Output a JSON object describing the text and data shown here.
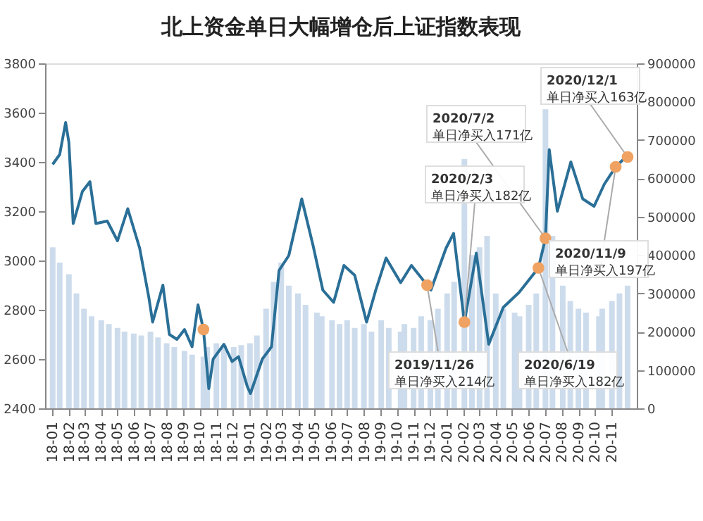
{
  "chart_data": {
    "type": "line",
    "title": "北上资金单日大幅增仓后上证指数表现",
    "xlim": [
      "2018-01-01",
      "2020-12-05"
    ],
    "xticks": [
      {
        "value": "2018-01-01",
        "label": "18-01"
      },
      {
        "value": "2018-02-01",
        "label": "18-02"
      },
      {
        "value": "2018-03-01",
        "label": "18-03"
      },
      {
        "value": "2018-04-01",
        "label": "18-04"
      },
      {
        "value": "2018-05-01",
        "label": "18-05"
      },
      {
        "value": "2018-06-01",
        "label": "18-06"
      },
      {
        "value": "2018-07-01",
        "label": "18-07"
      },
      {
        "value": "2018-08-01",
        "label": "18-08"
      },
      {
        "value": "2018-09-01",
        "label": "18-09"
      },
      {
        "value": "2018-10-01",
        "label": "18-10"
      },
      {
        "value": "2018-11-01",
        "label": "18-11"
      },
      {
        "value": "2018-12-01",
        "label": "18-12"
      },
      {
        "value": "2019-01-01",
        "label": "19-01"
      },
      {
        "value": "2019-02-01",
        "label": "19-02"
      },
      {
        "value": "2019-03-01",
        "label": "19-03"
      },
      {
        "value": "2019-04-01",
        "label": "19-04"
      },
      {
        "value": "2019-05-01",
        "label": "19-05"
      },
      {
        "value": "2019-06-01",
        "label": "19-06"
      },
      {
        "value": "2019-07-01",
        "label": "19-07"
      },
      {
        "value": "2019-08-01",
        "label": "19-08"
      },
      {
        "value": "2019-09-01",
        "label": "19-09"
      },
      {
        "value": "2019-10-01",
        "label": "19-10"
      },
      {
        "value": "2019-11-01",
        "label": "19-11"
      },
      {
        "value": "2019-12-01",
        "label": "19-12"
      },
      {
        "value": "2020-01-01",
        "label": "20-01"
      },
      {
        "value": "2020-02-01",
        "label": "20-02"
      },
      {
        "value": "2020-03-01",
        "label": "20-03"
      },
      {
        "value": "2020-04-01",
        "label": "20-04"
      },
      {
        "value": "2020-05-01",
        "label": "20-05"
      },
      {
        "value": "2020-06-01",
        "label": "20-06"
      },
      {
        "value": "2020-07-01",
        "label": "20-07"
      },
      {
        "value": "2020-08-01",
        "label": "20-08"
      },
      {
        "value": "2020-09-01",
        "label": "20-09"
      },
      {
        "value": "2020-10-01",
        "label": "20-10"
      },
      {
        "value": "2020-11-01",
        "label": "20-11"
      }
    ],
    "ylim": [
      2400,
      3800
    ],
    "yticks": [
      2400,
      2600,
      2800,
      3000,
      3200,
      3400,
      3600,
      3800
    ],
    "y2lim": [
      0,
      900000
    ],
    "y2ticks": [
      0,
      100000,
      200000,
      300000,
      400000,
      500000,
      600000,
      700000,
      800000,
      900000
    ],
    "series": [
      {
        "type": "bar",
        "axis": "y2",
        "color": "#cddcec",
        "x": [
          "2018-01-02",
          "2018-01-15",
          "2018-02-01",
          "2018-02-15",
          "2018-03-01",
          "2018-03-15",
          "2018-04-02",
          "2018-04-16",
          "2018-05-02",
          "2018-05-15",
          "2018-06-01",
          "2018-06-15",
          "2018-07-02",
          "2018-07-16",
          "2018-08-01",
          "2018-08-15",
          "2018-09-03",
          "2018-09-17",
          "2018-10-08",
          "2018-10-15",
          "2018-11-01",
          "2018-11-15",
          "2018-12-03",
          "2018-12-17",
          "2019-01-02",
          "2019-01-15",
          "2019-02-01",
          "2019-02-15",
          "2019-03-01",
          "2019-03-15",
          "2019-04-01",
          "2019-04-15",
          "2019-05-06",
          "2019-05-15",
          "2019-06-03",
          "2019-06-17",
          "2019-07-01",
          "2019-07-15",
          "2019-08-01",
          "2019-08-15",
          "2019-09-02",
          "2019-09-16",
          "2019-10-08",
          "2019-10-15",
          "2019-11-01",
          "2019-11-15",
          "2019-12-02",
          "2019-12-16",
          "2020-01-02",
          "2020-01-15",
          "2020-02-03",
          "2020-02-17",
          "2020-03-02",
          "2020-03-16",
          "2020-04-01",
          "2020-04-15",
          "2020-05-06",
          "2020-05-15",
          "2020-06-01",
          "2020-06-15",
          "2020-07-02",
          "2020-07-15",
          "2020-08-03",
          "2020-08-17",
          "2020-09-01",
          "2020-09-15",
          "2020-10-09",
          "2020-10-15",
          "2020-11-02",
          "2020-11-16",
          "2020-12-01"
        ],
        "values": [
          420000,
          380000,
          350000,
          300000,
          260000,
          240000,
          230000,
          220000,
          210000,
          200000,
          195000,
          190000,
          200000,
          185000,
          170000,
          160000,
          150000,
          140000,
          135000,
          160000,
          170000,
          165000,
          160000,
          165000,
          170000,
          190000,
          260000,
          330000,
          380000,
          320000,
          300000,
          270000,
          250000,
          240000,
          230000,
          220000,
          230000,
          210000,
          220000,
          200000,
          230000,
          210000,
          200000,
          220000,
          210000,
          240000,
          230000,
          260000,
          300000,
          330000,
          650000,
          400000,
          420000,
          450000,
          300000,
          260000,
          250000,
          240000,
          270000,
          300000,
          780000,
          450000,
          320000,
          280000,
          260000,
          250000,
          240000,
          260000,
          280000,
          300000,
          320000
        ]
      },
      {
        "color": "#2a6f97",
        "x": [
          "2018-01-02",
          "2018-01-15",
          "2018-01-26",
          "2018-02-01",
          "2018-02-09",
          "2018-02-26",
          "2018-03-12",
          "2018-03-23",
          "2018-04-13",
          "2018-05-02",
          "2018-05-21",
          "2018-06-12",
          "2018-06-29",
          "2018-07-06",
          "2018-07-25",
          "2018-08-06",
          "2018-08-20",
          "2018-09-03",
          "2018-09-17",
          "2018-09-28",
          "2018-10-08",
          "2018-10-18",
          "2018-10-26",
          "2018-11-15",
          "2018-11-30",
          "2018-12-12",
          "2018-12-28",
          "2019-01-03",
          "2019-01-25",
          "2019-02-11",
          "2019-02-25",
          "2019-03-15",
          "2019-04-08",
          "2019-04-29",
          "2019-05-17",
          "2019-06-06",
          "2019-06-25",
          "2019-07-15",
          "2019-08-06",
          "2019-08-23",
          "2019-09-11",
          "2019-10-08",
          "2019-10-28",
          "2019-11-26",
          "2019-12-03",
          "2019-12-31",
          "2020-01-14",
          "2020-02-03",
          "2020-02-25",
          "2020-03-19",
          "2020-04-15",
          "2020-05-14",
          "2020-06-19",
          "2020-07-02",
          "2020-07-09",
          "2020-07-24",
          "2020-08-18",
          "2020-09-09",
          "2020-09-30",
          "2020-10-19",
          "2020-11-09",
          "2020-11-23",
          "2020-12-01"
        ],
        "values": [
          3390,
          3430,
          3560,
          3480,
          3150,
          3280,
          3320,
          3150,
          3160,
          3080,
          3210,
          3050,
          2850,
          2750,
          2900,
          2700,
          2680,
          2720,
          2650,
          2820,
          2720,
          2480,
          2600,
          2660,
          2590,
          2610,
          2490,
          2460,
          2600,
          2650,
          2960,
          3020,
          3250,
          3060,
          2880,
          2830,
          2980,
          2940,
          2750,
          2880,
          3010,
          2910,
          2980,
          2900,
          2880,
          3050,
          3110,
          2750,
          3030,
          2660,
          2810,
          2870,
          2970,
          3090,
          3450,
          3200,
          3400,
          3250,
          3220,
          3310,
          3380,
          3410,
          3420
        ]
      },
      {
        "type": "scatter",
        "marker": "circle",
        "color": "#f0a262",
        "x": [
          "2018-10-08",
          "2019-11-26",
          "2020-02-03",
          "2020-06-19",
          "2020-07-02",
          "2020-11-09",
          "2020-12-01"
        ],
        "values": [
          2720,
          2900,
          2750,
          2970,
          3090,
          3380,
          3420
        ]
      }
    ],
    "annotations": [
      {
        "text": "2019/11/26\n单日净买入214亿",
        "x": "2019-11-26",
        "y": 2900
      },
      {
        "text": "2020/2/3\n单日净买入182亿",
        "x": "2020-02-03",
        "y": 2750
      },
      {
        "text": "2020/6/19\n单日净买入182亿",
        "x": "2020-06-19",
        "y": 2970
      },
      {
        "text": "2020/7/2\n单日净买入171亿",
        "x": "2020-07-02",
        "y": 3090
      },
      {
        "text": "2020/11/9\n单日净买入197亿",
        "x": "2020-11-09",
        "y": 3380
      },
      {
        "text": "2020/12/1\n单日净买入163亿",
        "x": "2020-12-01",
        "y": 3420
      }
    ]
  }
}
